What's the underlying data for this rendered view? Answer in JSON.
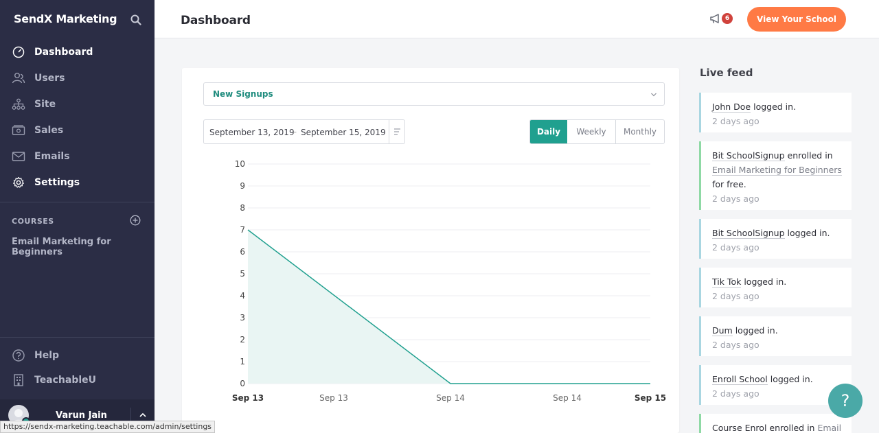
{
  "sidebar": {
    "brand": "SendX Marketing",
    "nav": [
      {
        "label": "Dashboard",
        "icon": "speedometer-icon",
        "active": true
      },
      {
        "label": "Users",
        "icon": "users-icon",
        "active": false
      },
      {
        "label": "Site",
        "icon": "sitemap-icon",
        "active": false
      },
      {
        "label": "Sales",
        "icon": "money-icon",
        "active": false
      },
      {
        "label": "Emails",
        "icon": "envelope-icon",
        "active": false
      },
      {
        "label": "Settings",
        "icon": "gear-icon",
        "active": false
      }
    ],
    "courses_header": "COURSES",
    "course": "Email Marketing for Beginners",
    "help": "Help",
    "teachableu": "TeachableU",
    "user_name": "Varun Jain"
  },
  "topbar": {
    "title": "Dashboard",
    "notification_count": "6",
    "view_school": "View Your School"
  },
  "dashboard": {
    "metric": "New Signups",
    "date_from": "September 13, 2019",
    "date_sep": "–",
    "date_to": "September 15, 2019",
    "periods": {
      "daily": "Daily",
      "weekly": "Weekly",
      "monthly": "Monthly"
    }
  },
  "chart_data": {
    "type": "area",
    "x": [
      "Sep 13",
      "Sep 13",
      "Sep 14",
      "Sep 14",
      "Sep 15"
    ],
    "x_bold": [
      true,
      false,
      false,
      false,
      true
    ],
    "series": [
      {
        "values": [
          7,
          null,
          0,
          null,
          0
        ]
      }
    ],
    "points": [
      [
        0,
        7
      ],
      [
        1,
        0
      ],
      [
        2,
        0
      ]
    ],
    "ylim": [
      0,
      10
    ],
    "yticks": [
      0,
      1,
      2,
      3,
      4,
      5,
      6,
      7,
      8,
      9,
      10
    ],
    "grid": true,
    "color": "#20a08f",
    "fill": "#e9f5f3"
  },
  "feed": {
    "title": "Live feed",
    "items": [
      {
        "user": "John Doe",
        "text": " logged in.",
        "course": "",
        "suffix": "",
        "time": "2 days ago",
        "accent": "blue"
      },
      {
        "user": "Bit SchoolSignup",
        "text": " enrolled in",
        "course": "Email Marketing for Beginners",
        "suffix": "for free.",
        "time": "2 days ago",
        "accent": "green"
      },
      {
        "user": "Bit SchoolSignup",
        "text": " logged in.",
        "course": "",
        "suffix": "",
        "time": "2 days ago",
        "accent": "blue"
      },
      {
        "user": "Tik Tok",
        "text": " logged in.",
        "course": "",
        "suffix": "",
        "time": "2 days ago",
        "accent": "blue"
      },
      {
        "user": "Dum",
        "text": " logged in.",
        "course": "",
        "suffix": "",
        "time": "2 days ago",
        "accent": "blue"
      },
      {
        "user": "Enroll School",
        "text": " logged in.",
        "course": "",
        "suffix": "",
        "time": "2 days ago",
        "accent": "blue"
      },
      {
        "user": "Course Enrol",
        "text": " enrolled in ",
        "course": "Email",
        "suffix": "",
        "time": "",
        "accent": "green"
      }
    ]
  },
  "help_fab": "?",
  "status_url": "https://sendx-marketing.teachable.com/admin/settings"
}
